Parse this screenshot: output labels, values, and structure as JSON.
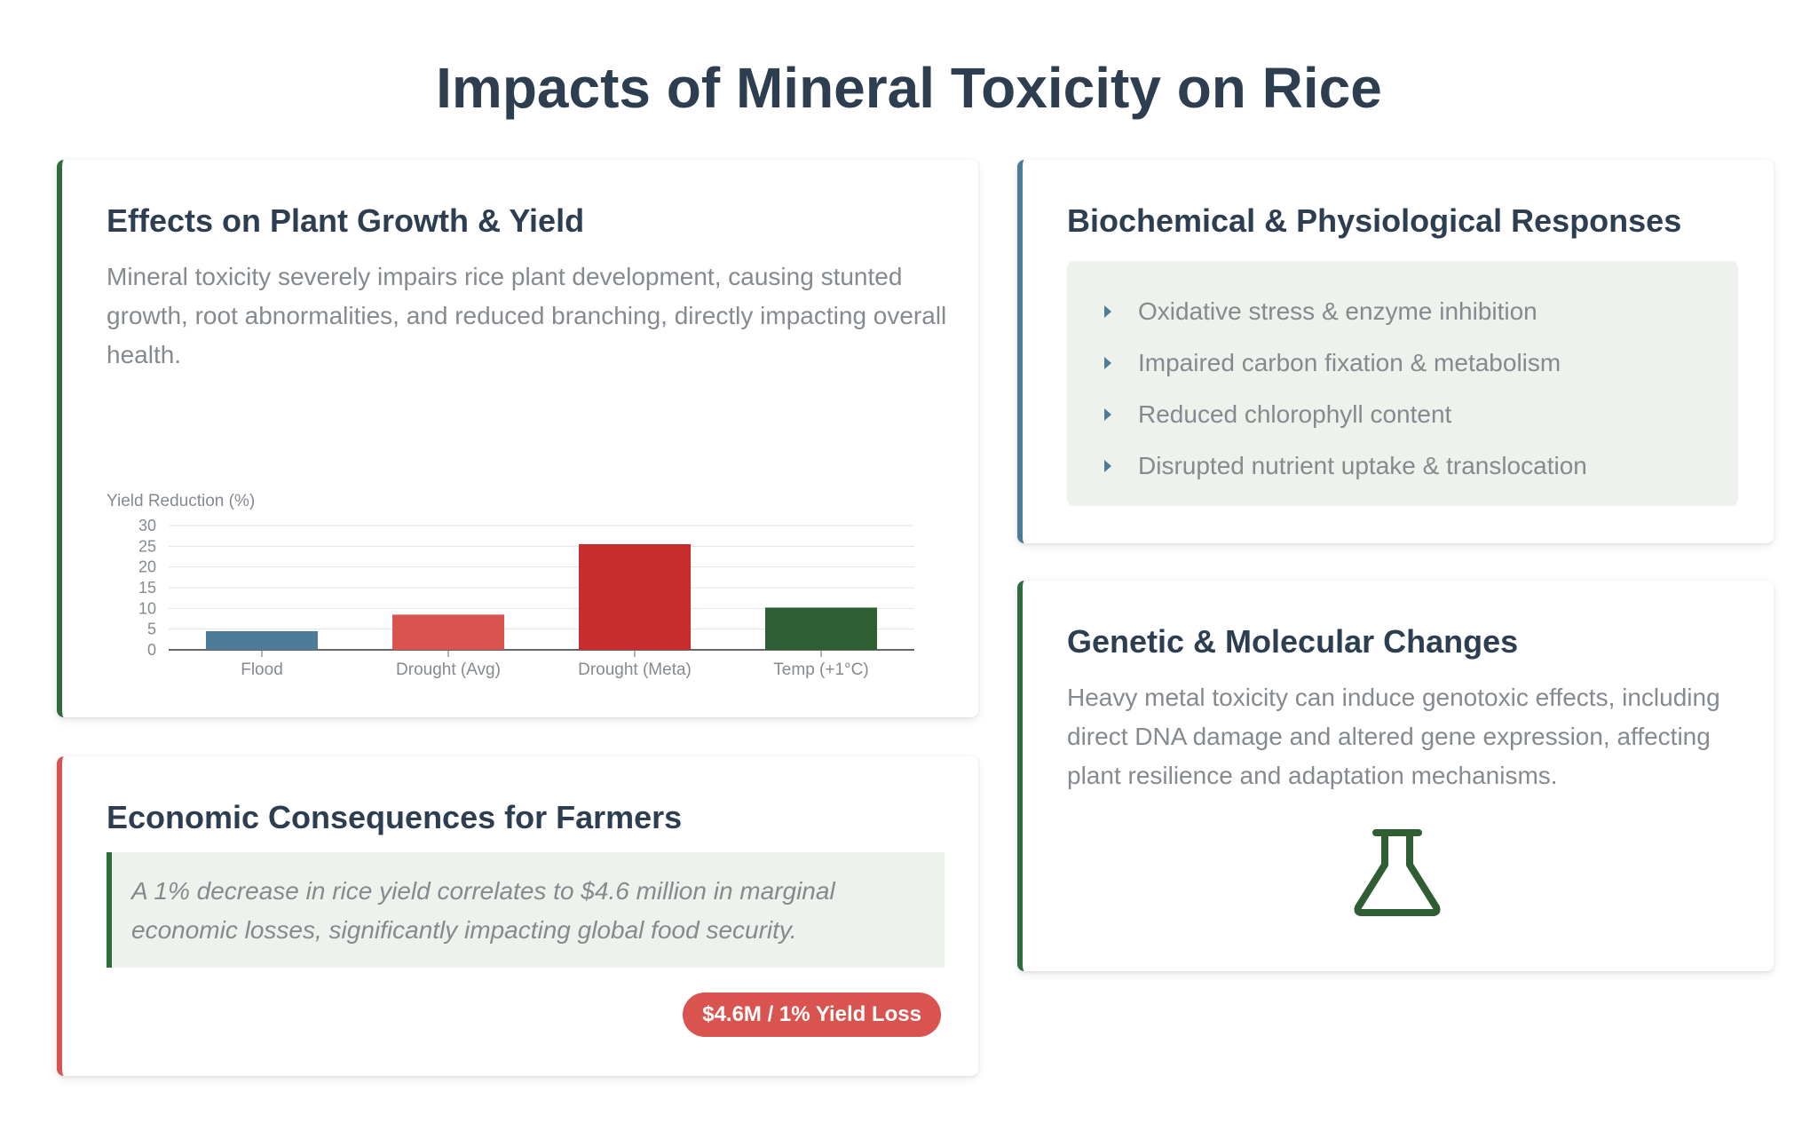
{
  "page_title": "Impacts of Mineral Toxicity on Rice",
  "growth": {
    "title": "Effects on Plant Growth & Yield",
    "description": "Mineral toxicity severely impairs rice plant development, causing stunted growth, root abnormalities, and reduced branching, directly impacting overall health."
  },
  "chart_data": {
    "type": "bar",
    "ylabel": "Yield Reduction (%)",
    "categories": [
      "Flood",
      "Drought (Avg)",
      "Drought (Meta)",
      "Temp (+1°C)"
    ],
    "values": [
      4.5,
      8.5,
      25.5,
      10.2
    ],
    "colors": [
      "#4d7c99",
      "#d9534f",
      "#c82d2d",
      "#2e5e32"
    ],
    "ylim": [
      0,
      30
    ],
    "yticks": [
      0,
      5,
      10,
      15,
      20,
      25,
      30
    ],
    "grid": true,
    "legend": false
  },
  "bio": {
    "title": "Biochemical & Physiological Responses",
    "items": [
      "Oxidative stress & enzyme inhibition",
      "Impaired carbon fixation & metabolism",
      "Reduced chlorophyll content",
      "Disrupted nutrient uptake & translocation"
    ]
  },
  "economic": {
    "title": "Economic Consequences for Farmers",
    "quote": "A 1% decrease in rice yield correlates to $4.6 million in marginal economic losses, significantly impacting global food security.",
    "badge": "$4.6M / 1% Yield Loss"
  },
  "genetic": {
    "title": "Genetic & Molecular Changes",
    "description": "Heavy metal toxicity can induce genotoxic effects, including direct DNA damage and altered gene expression, affecting plant resilience and adaptation mechanisms.",
    "icon": "flask-icon"
  },
  "colors": {
    "heading": "#2c3e50",
    "green": "#2e6b3f",
    "blue": "#4d7c99",
    "red": "#d9534f",
    "panel": "#edf2ec"
  }
}
